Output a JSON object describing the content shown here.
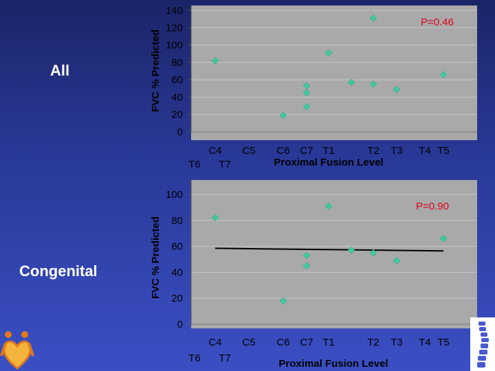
{
  "left_labels": {
    "top": "All",
    "bottom": "Congenital"
  },
  "colors": {
    "background": "#2a3a9a",
    "plot_bg": "#a9a9a9",
    "marker": "#40c9a0",
    "pvalue_text": "#e0001a",
    "axis_text": "#000000",
    "side_label_text": "#ffffff"
  },
  "icons": {
    "bottom_left": "family-heart-logo",
    "bottom_right": "spine-icon"
  },
  "chart_data": [
    {
      "type": "scatter",
      "title": "",
      "ylabel": "FVC % Predicted",
      "xlabel": "Proximal Fusion Level",
      "annotation": "P=0.46",
      "ylim": [
        0,
        140
      ],
      "yticks": [
        "140",
        "120",
        "100",
        "80",
        "60",
        "40",
        "20",
        "0"
      ],
      "x_tick_labels": [
        {
          "text": "T6",
          "row": 2
        },
        {
          "text": "C4",
          "row": 1
        },
        {
          "text": "T7",
          "row": 2
        },
        {
          "text": "C5",
          "row": 1
        },
        {
          "text": "C6",
          "row": 1
        },
        {
          "text": "C7",
          "row": 1
        },
        {
          "text": "T1",
          "row": 1
        },
        {
          "text": "T2",
          "row": 1
        },
        {
          "text": "T3",
          "row": 1
        },
        {
          "text": "T4",
          "row": 1
        },
        {
          "text": "T5",
          "row": 1
        }
      ],
      "points": [
        {
          "level": "C4",
          "y": 82
        },
        {
          "level": "C6",
          "y": 19
        },
        {
          "level": "C7",
          "y": 53
        },
        {
          "level": "C7",
          "y": 45
        },
        {
          "level": "C7",
          "y": 29
        },
        {
          "level": "T1",
          "y": 91
        },
        {
          "level": "T1-T2",
          "y": 57
        },
        {
          "level": "T2",
          "y": 131
        },
        {
          "level": "T2",
          "y": 55
        },
        {
          "level": "T3",
          "y": 49
        },
        {
          "level": "T5",
          "y": 66
        }
      ],
      "grid": true
    },
    {
      "type": "scatter",
      "title": "",
      "ylabel": "FVC % Predicted",
      "xlabel": "Proximal Fusion Level",
      "annotation": "P=0.90",
      "ylim": [
        0,
        100
      ],
      "yticks": [
        "100",
        "80",
        "60",
        "40",
        "20",
        "0"
      ],
      "x_tick_labels": [
        {
          "text": "T6",
          "row": 2
        },
        {
          "text": "C4",
          "row": 1
        },
        {
          "text": "T7",
          "row": 2
        },
        {
          "text": "C5",
          "row": 1
        },
        {
          "text": "C6",
          "row": 1
        },
        {
          "text": "C7",
          "row": 1
        },
        {
          "text": "T1",
          "row": 1
        },
        {
          "text": "T2",
          "row": 1
        },
        {
          "text": "T3",
          "row": 1
        },
        {
          "text": "T4",
          "row": 1
        },
        {
          "text": "T5",
          "row": 1
        }
      ],
      "points": [
        {
          "level": "C4",
          "y": 82
        },
        {
          "level": "C6",
          "y": 18
        },
        {
          "level": "C7",
          "y": 53
        },
        {
          "level": "C7",
          "y": 45
        },
        {
          "level": "T1",
          "y": 91
        },
        {
          "level": "T1-T2",
          "y": 57
        },
        {
          "level": "T2",
          "y": 55
        },
        {
          "level": "T3",
          "y": 49
        },
        {
          "level": "T5",
          "y": 66
        }
      ],
      "trendline": {
        "from": {
          "level": "C4",
          "y": 58.5
        },
        "to": {
          "level": "T5",
          "y": 56.5
        }
      },
      "grid": true
    }
  ]
}
